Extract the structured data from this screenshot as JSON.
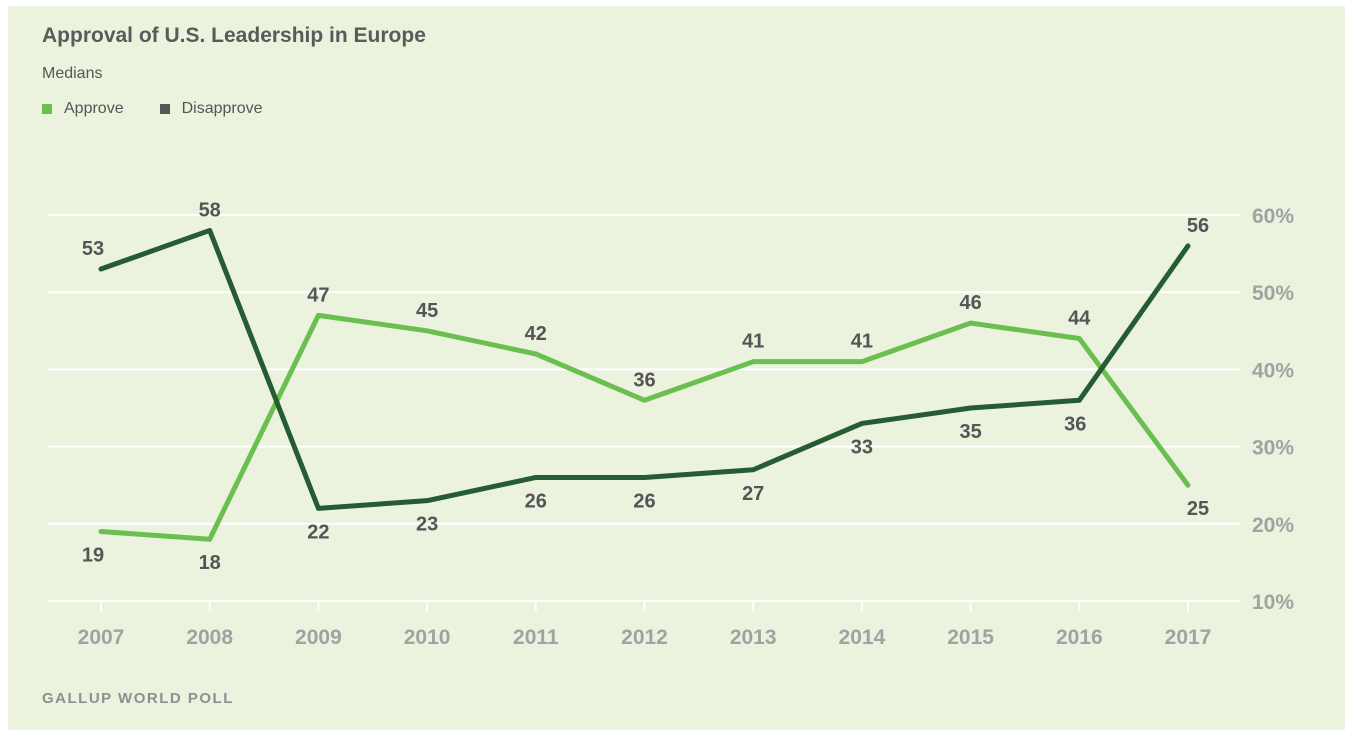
{
  "header": {
    "title": "Approval of U.S. Leadership in Europe",
    "subtitle": "Medians"
  },
  "legend": {
    "approve_label": "Approve",
    "disapprove_label": "Disapprove"
  },
  "footer": {
    "source": "GALLUP WORLD POLL"
  },
  "colors": {
    "background": "#ebf3df",
    "approve": "#6abf50",
    "disapprove": "#255c32",
    "grid": "#ffffff"
  },
  "chart_data": {
    "type": "line",
    "title": "Approval of U.S. Leadership in Europe",
    "subtitle": "Medians",
    "x": [
      "2007",
      "2008",
      "2009",
      "2010",
      "2011",
      "2012",
      "2013",
      "2014",
      "2015",
      "2016",
      "2017"
    ],
    "series": [
      {
        "name": "Approve",
        "color": "#6abf50",
        "values": [
          19,
          18,
          47,
          45,
          42,
          36,
          41,
          41,
          46,
          44,
          25
        ]
      },
      {
        "name": "Disapprove",
        "color": "#255c32",
        "values": [
          53,
          58,
          22,
          23,
          26,
          26,
          27,
          33,
          35,
          36,
          56
        ]
      }
    ],
    "yticks": [
      "10%",
      "20%",
      "30%",
      "40%",
      "50%",
      "60%"
    ],
    "ylim": [
      10,
      60
    ],
    "yaxis_side": "right",
    "grid": true,
    "legend_position": "top-left",
    "data_labels": true
  }
}
